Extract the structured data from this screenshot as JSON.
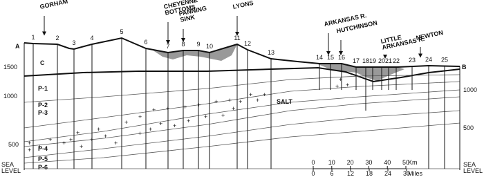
{
  "section": {
    "start": "A",
    "end": "B"
  },
  "wells": [
    "1",
    "2",
    "3",
    "4",
    "5",
    "6",
    "7",
    "8",
    "9",
    "10",
    "11",
    "12",
    "13",
    "14",
    "15",
    "16",
    "17",
    "18",
    "19",
    "20",
    "21",
    "22",
    "23",
    "24",
    "25"
  ],
  "places": [
    {
      "lines": [
        "GORHAM"
      ]
    },
    {
      "lines": [
        "CHEYENNE",
        "BOTTOMS"
      ]
    },
    {
      "lines": [
        "PANNING",
        "SINK"
      ]
    },
    {
      "lines": [
        "LYONS"
      ]
    },
    {
      "lines": [
        "ARKANSAS R."
      ]
    },
    {
      "lines": [
        "HUTCHINSON"
      ]
    },
    {
      "lines": [
        "LITTLE",
        "ARKANSAS R."
      ]
    },
    {
      "lines": [
        "NEWTON"
      ]
    }
  ],
  "units": [
    "C",
    "P-1",
    "P-2",
    "P-3",
    "P-4",
    "P-5",
    "P-6",
    "SALT"
  ],
  "left_axis": [
    "1500",
    "1000",
    "500",
    "SEA",
    "LEVEL"
  ],
  "right_axis": [
    "1000",
    "500",
    "SEA",
    "LEVEL"
  ],
  "scale": {
    "km": [
      "0",
      "10",
      "20",
      "30",
      "40",
      "50"
    ],
    "km_unit": "Km",
    "miles": [
      "0",
      "6",
      "12",
      "18",
      "24",
      "30"
    ],
    "miles_unit": "Miles"
  }
}
